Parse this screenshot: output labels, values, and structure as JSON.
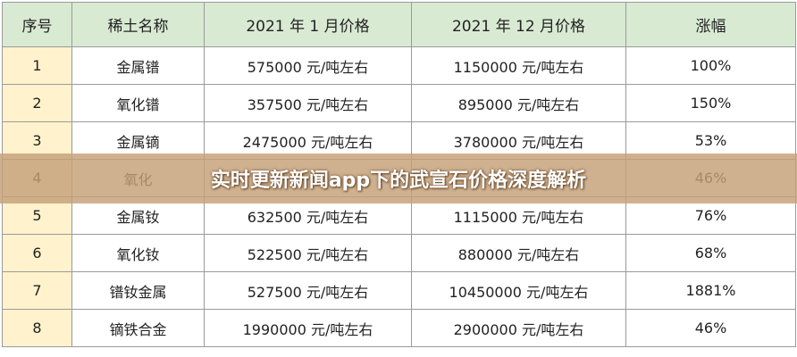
{
  "table": {
    "header": [
      "序号",
      "稀土名称",
      "2021 年 1 月价格",
      "2021 年 12 月价格",
      "涨幅"
    ],
    "rows": [
      [
        "1",
        "金属镨",
        "575000 元/吨左右",
        "1150000 元/吨左右",
        "100%"
      ],
      [
        "2",
        "氧化镨",
        "357500 元/吨左右",
        "895000 元/吨左右",
        "150%"
      ],
      [
        "3",
        "金属镝",
        "2475000 元/吨左右",
        "3780000 元/吨左右",
        "53%"
      ],
      [
        "4",
        "氧化",
        null,
        null,
        "46%"
      ],
      [
        "5",
        "金属钕",
        "632500 元/吨左右",
        "1115000 元/吨左右",
        "76%"
      ],
      [
        "6",
        "氧化钕",
        "522500 元/吨左右",
        "880000 元/吨左右",
        "68%"
      ],
      [
        "7",
        "镨钕金属",
        "527500 元/吨左右",
        "10450000 元/吨左右",
        "1881%"
      ],
      [
        "8",
        "镝铁合金",
        "1990000 元/吨左右",
        "2900000 元/吨左右",
        "46%"
      ]
    ]
  },
  "banner": {
    "title": "实时更新新闻app下的武宣石价格深度解析"
  }
}
